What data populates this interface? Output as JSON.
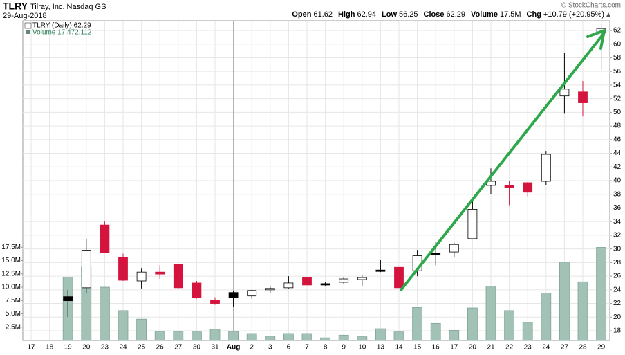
{
  "header": {
    "symbol": "TLRY",
    "company": "Tilray, Inc. Nasdaq GS",
    "date": "29-Aug-2018",
    "copyright": "© StockCharts.com",
    "info": [
      {
        "label": "Open",
        "value": "61.62"
      },
      {
        "label": "High",
        "value": "62.94"
      },
      {
        "label": "Low",
        "value": "56.25"
      },
      {
        "label": "Close",
        "value": "62.29"
      },
      {
        "label": "Volume",
        "value": "17.5M"
      },
      {
        "label": "Chg",
        "value": "+10.79 (+20.95%)"
      }
    ]
  },
  "chart_data": {
    "type": "candlestick",
    "categories": [
      "17",
      "18",
      "19",
      "20",
      "23",
      "24",
      "25",
      "26",
      "27",
      "30",
      "31",
      "Aug",
      "2",
      "3",
      "6",
      "7",
      "8",
      "9",
      "10",
      "13",
      "14",
      "15",
      "16",
      "17",
      "20",
      "21",
      "22",
      "23",
      "24",
      "27",
      "28",
      "29"
    ],
    "series": [
      {
        "name": "TLRY (Daily) 62.29",
        "open": [
          null,
          null,
          23.0,
          24.3,
          33.5,
          28.8,
          25.3,
          26.6,
          27.7,
          25.0,
          22.5,
          23.6,
          23.1,
          24.1,
          24.3,
          25.8,
          24.9,
          25.1,
          25.5,
          26.9,
          27.3,
          26.8,
          29.4,
          29.55,
          31.5,
          39.3,
          39.3,
          39.7,
          39.9,
          52.4,
          53.0,
          61.62
        ],
        "high": [
          null,
          null,
          24.0,
          31.5,
          34.0,
          29.3,
          27.1,
          27.6,
          27.7,
          25.3,
          22.9,
          23.8,
          24.0,
          24.6,
          26.0,
          25.8,
          25.2,
          25.8,
          26.1,
          28.4,
          27.3,
          29.85,
          31.0,
          30.9,
          37.4,
          41.8,
          40.0,
          39.8,
          44.35,
          58.65,
          54.6,
          62.94
        ],
        "low": [
          null,
          null,
          20.0,
          23.5,
          29.4,
          25.3,
          24.2,
          25.6,
          24.2,
          22.7,
          21.8,
          21.5,
          22.7,
          23.5,
          24.2,
          24.7,
          24.6,
          24.9,
          24.6,
          26.6,
          24.3,
          26.0,
          27.6,
          28.8,
          31.5,
          38.0,
          36.4,
          37.7,
          39.3,
          49.8,
          49.4,
          56.25
        ],
        "close": [
          null,
          null,
          22.4,
          29.8,
          29.4,
          25.4,
          26.6,
          26.3,
          24.3,
          22.9,
          22.0,
          22.9,
          23.9,
          24.2,
          25.0,
          24.7,
          24.7,
          25.6,
          25.8,
          26.7,
          24.3,
          29.0,
          29.2,
          30.65,
          35.8,
          39.9,
          39.0,
          38.3,
          43.85,
          53.4,
          51.4,
          62.29
        ],
        "colors": [
          null,
          null,
          "#000000",
          "#ffffff",
          "#d4143c",
          "#d4143c",
          "#ffffff",
          "#d4143c",
          "#d4143c",
          "#d4143c",
          "#d4143c",
          "#000000",
          "#ffffff",
          "#ffffff",
          "#ffffff",
          "#d4143c",
          "#000000",
          "#ffffff",
          "#ffffff",
          "#000000",
          "#d4143c",
          "#ffffff",
          "#000000",
          "#ffffff",
          "#ffffff",
          "#ffffff",
          "#d4143c",
          "#d4143c",
          "#ffffff",
          "#ffffff",
          "#d4143c",
          "#ffffff"
        ]
      },
      {
        "name": "Volume 17,472,112",
        "axis": "y2",
        "color": "#a3c2b6",
        "values": [
          null,
          null,
          11900000,
          13800000,
          10000000,
          5600000,
          4000000,
          1700000,
          1700000,
          1600000,
          2100000,
          1700000,
          1300000,
          800000,
          1300000,
          1300000,
          500000,
          1000000,
          700000,
          2200000,
          1600000,
          6200000,
          3200000,
          1900000,
          6100000,
          10200000,
          5600000,
          3400000,
          8900000,
          14700000,
          11000000,
          17472112
        ]
      }
    ],
    "ylim": [
      16.58,
      63.42
    ],
    "yticks": [
      18,
      20,
      22,
      24,
      26,
      28,
      30,
      32,
      34,
      36,
      38,
      40,
      42,
      44,
      46,
      48,
      50,
      52,
      54,
      56,
      58,
      60,
      62
    ],
    "y2lim": [
      0,
      60000000
    ],
    "y2ticks": [
      {
        "value": 2500000,
        "label": "2.5M"
      },
      {
        "value": 5000000,
        "label": "5.0M"
      },
      {
        "value": 7500000,
        "label": "7.5M"
      },
      {
        "value": 10000000,
        "label": "10.0M"
      },
      {
        "value": 12500000,
        "label": "12.5M"
      },
      {
        "value": 15000000,
        "label": "15.0M"
      },
      {
        "value": 17500000,
        "label": "17.5M"
      }
    ],
    "grid": true
  }
}
